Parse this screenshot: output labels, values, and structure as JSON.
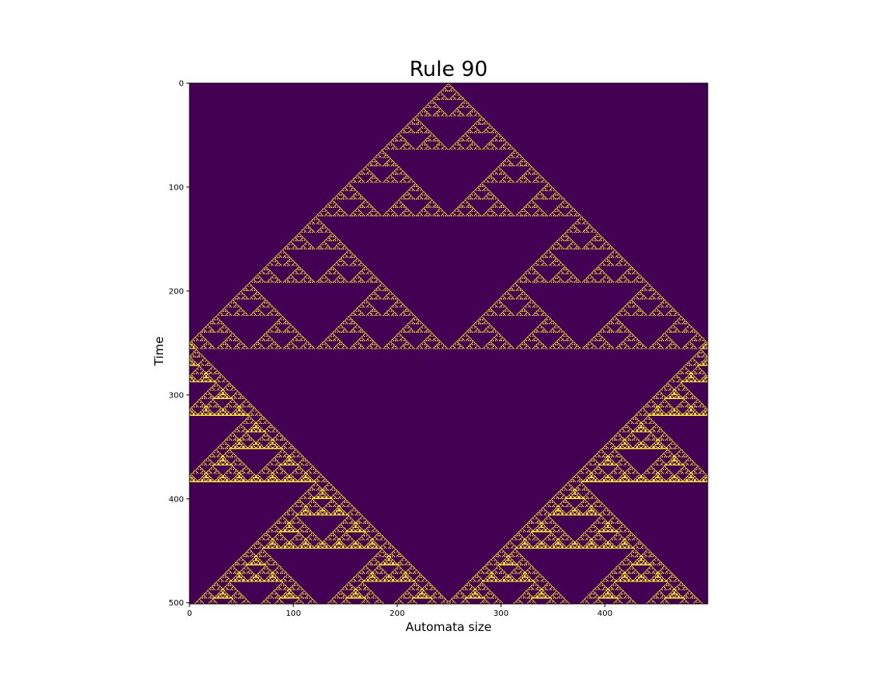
{
  "chart_data": {
    "type": "heatmap",
    "title": "Rule 90",
    "xlabel": "Automata size",
    "ylabel": "Time",
    "rule": 90,
    "width": 499,
    "steps": 501,
    "initial_cell": 249,
    "xlim": [
      0,
      499
    ],
    "ylim": [
      501,
      0
    ],
    "xticks": [
      0,
      100,
      200,
      300,
      400
    ],
    "yticks": [
      0,
      100,
      200,
      300,
      400,
      500
    ],
    "colormap": "viridis",
    "colors": {
      "off": "#440154",
      "on": "#fde725"
    },
    "grid": false
  }
}
